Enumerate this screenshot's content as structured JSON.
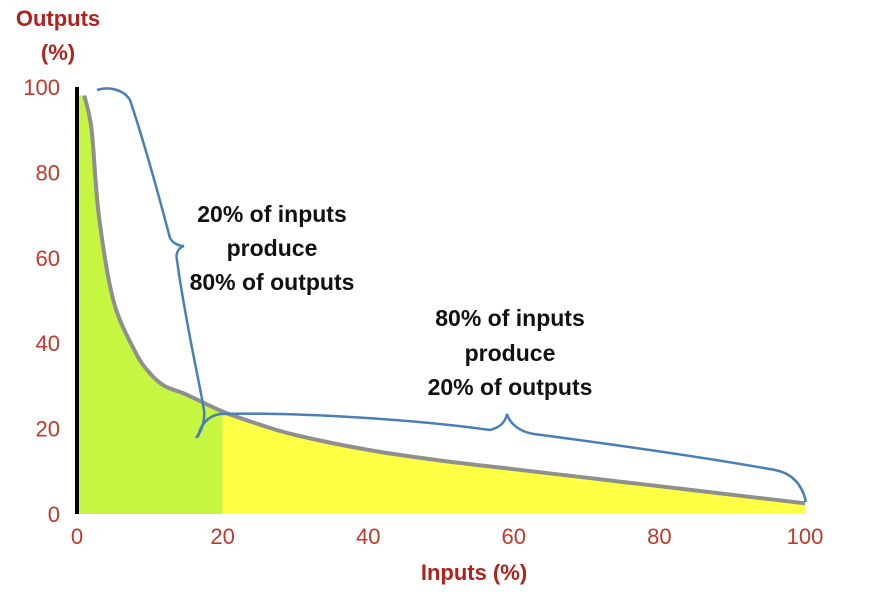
{
  "chart_data": {
    "type": "area",
    "xlabel": "Inputs (%)",
    "ylabel": [
      "Outputs",
      "(%)"
    ],
    "xlim": [
      0,
      100
    ],
    "ylim": [
      0,
      100
    ],
    "x_ticks": [
      "0",
      "20",
      "40",
      "60",
      "80",
      "100"
    ],
    "y_ticks": [
      "0",
      "20",
      "40",
      "60",
      "80",
      "100"
    ],
    "grid": false,
    "curve": {
      "x": [
        1,
        2,
        3,
        5,
        8,
        10,
        12,
        15,
        20,
        25,
        30,
        40,
        50,
        60,
        70,
        80,
        90,
        100
      ],
      "y": [
        98,
        90,
        70,
        50,
        38,
        33,
        30,
        28,
        24,
        21,
        18.5,
        15,
        12.5,
        10.5,
        8.5,
        6.5,
        4.5,
        2.5
      ]
    },
    "regions": [
      {
        "x_from": 0,
        "x_to": 20,
        "color": "#c6f542"
      },
      {
        "x_from": 20,
        "x_to": 100,
        "color": "#ffff44"
      }
    ],
    "annotations": [
      {
        "lines": [
          "20% of inputs",
          "produce",
          "80% of outputs"
        ]
      },
      {
        "lines": [
          "80% of inputs",
          "produce",
          "20% of outputs"
        ]
      }
    ],
    "colors": {
      "curve": "#8f8f8f",
      "brace": "#4a7fb5",
      "tick_text": "#c0392b",
      "axis_title": "#b0221c",
      "y_axis": "#000000"
    }
  }
}
